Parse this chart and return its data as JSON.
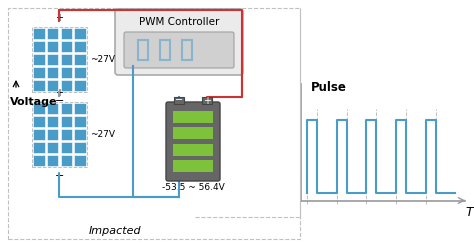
{
  "bg_color": "#ffffff",
  "pwm_box_label": "PWM Controller",
  "voltage_label": "Voltage",
  "impacted_label": "Impacted",
  "solar_voltage_1": "~27V",
  "solar_voltage_2": "~27V",
  "battery_voltage": "-53.5 ~ 56.4V",
  "pulse_label": "Pulse",
  "T_label": "T",
  "blue_color": "#4A9CC8",
  "red_color": "#CC3333",
  "gray_color": "#999999",
  "green_color": "#7DC23A",
  "box_fill": "#EBEBEB",
  "box_edge": "#AAAAAA",
  "bat_body": "#666666",
  "bat_edge": "#444444",
  "dashed_gray": "#C0C0C0",
  "pwm_signal_color": "#8AB4CC",
  "pulse_x": [
    0,
    0,
    0.5,
    0.5,
    1.5,
    1.5,
    2.0,
    2.0,
    3.0,
    3.0,
    3.5,
    3.5,
    4.5,
    4.5,
    5.0,
    5.0,
    6.0,
    6.0,
    6.5,
    6.5,
    7.5
  ],
  "pulse_y": [
    0,
    1,
    1,
    0,
    0,
    1,
    1,
    0,
    0,
    1,
    1,
    0,
    0,
    1,
    1,
    0,
    0,
    1,
    1,
    0,
    0
  ],
  "dash_vlines": [
    0.5,
    2.0,
    3.5,
    5.0,
    6.5
  ],
  "dash_vlines_bot": [
    0.0,
    1.5,
    3.0,
    4.5,
    6.0
  ]
}
